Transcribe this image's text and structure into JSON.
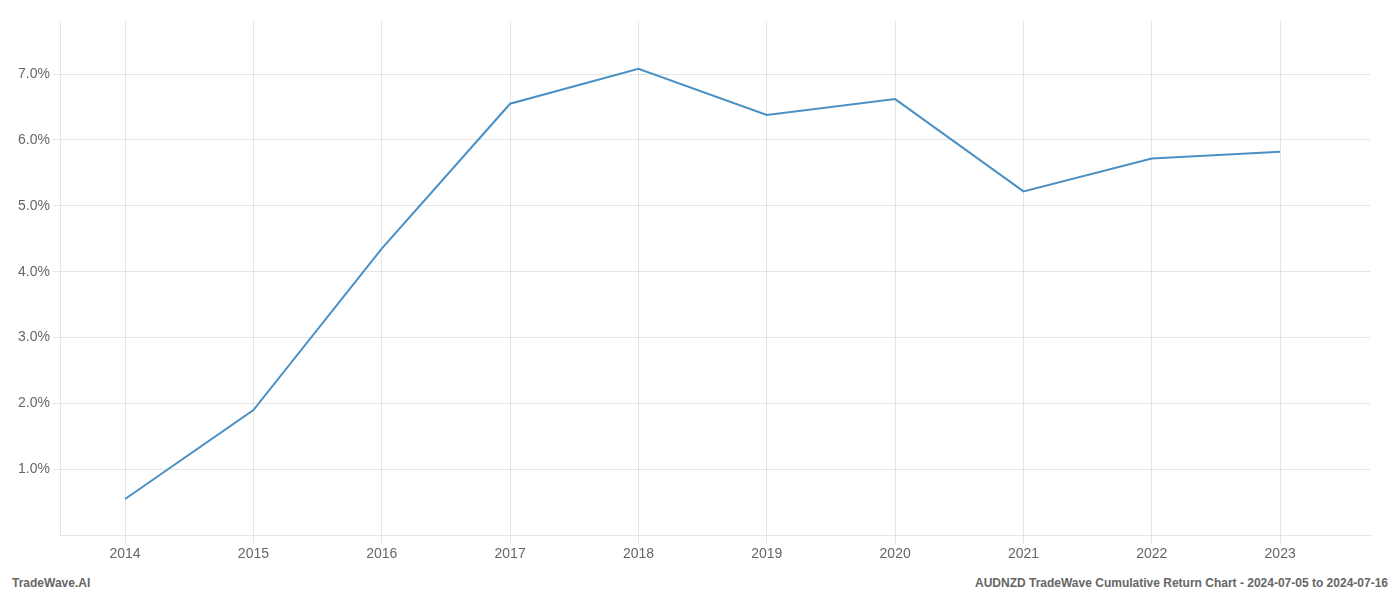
{
  "chart_data": {
    "type": "line",
    "x": [
      2014,
      2015,
      2016,
      2017,
      2018,
      2019,
      2020,
      2021,
      2022,
      2023
    ],
    "values": [
      0.55,
      1.9,
      4.35,
      6.55,
      7.08,
      6.38,
      6.62,
      5.22,
      5.72,
      5.82
    ],
    "color": "#4a90c4",
    "xlim": [
      2013.5,
      2023.7
    ],
    "xticks": [
      2014,
      2015,
      2016,
      2017,
      2018,
      2019,
      2020,
      2021,
      2022,
      2023
    ],
    "ylim": [
      0.0,
      7.8
    ],
    "yticks": [
      {
        "value": 1.0,
        "label": "1.0%"
      },
      {
        "value": 2.0,
        "label": "2.0%"
      },
      {
        "value": 3.0,
        "label": "3.0%"
      },
      {
        "value": 4.0,
        "label": "4.0%"
      },
      {
        "value": 5.0,
        "label": "5.0%"
      },
      {
        "value": 6.0,
        "label": "6.0%"
      },
      {
        "value": 7.0,
        "label": "7.0%"
      }
    ],
    "grid": true,
    "annotations": [
      "TradeWave.AI",
      "AUDNZD TradeWave Cumulative Return Chart - 2024-07-05 to 2024-07-16"
    ]
  }
}
